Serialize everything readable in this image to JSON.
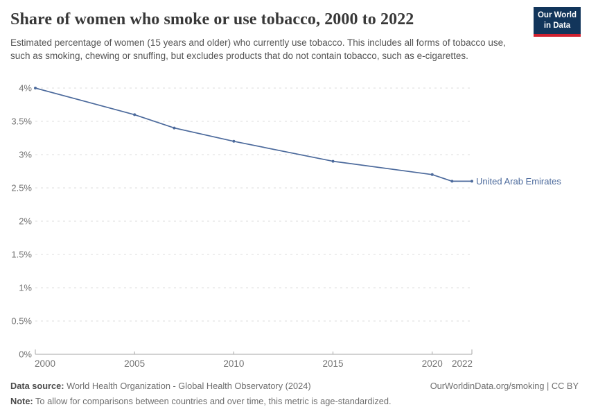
{
  "header": {
    "title": "Share of women who smoke or use tobacco, 2000 to 2022",
    "subtitle": "Estimated percentage of women (15 years and older) who currently use tobacco. This includes all forms of tobacco use, such as smoking, chewing or snuffing, but excludes products that do not contain tobacco, such as e-cigarettes."
  },
  "logo": {
    "line1": "Our World",
    "line2": "in Data",
    "bg_color": "#12355b",
    "stripe_color": "#d0212f"
  },
  "chart_data": {
    "type": "line",
    "title": "Share of women who smoke or use tobacco, 2000 to 2022",
    "series": [
      {
        "name": "United Arab Emirates",
        "color": "#4C6A9C",
        "x": [
          2000,
          2005,
          2007,
          2010,
          2015,
          2020,
          2021,
          2022
        ],
        "values": [
          4.0,
          3.6,
          3.4,
          3.2,
          2.9,
          2.7,
          2.6,
          2.6
        ]
      }
    ],
    "xlim": [
      2000,
      2022
    ],
    "ylim": [
      0,
      4
    ],
    "x_ticks": [
      2000,
      2005,
      2010,
      2015,
      2020,
      2022
    ],
    "y_ticks": [
      0,
      0.5,
      1,
      1.5,
      2,
      2.5,
      3,
      3.5,
      4
    ],
    "y_tick_labels": [
      "0%",
      "0.5%",
      "1%",
      "1.5%",
      "2%",
      "2.5%",
      "3%",
      "3.5%",
      "4%"
    ],
    "xlabel": "",
    "ylabel": "",
    "grid": "horizontal-dashed",
    "legend_position": "end-of-line-label",
    "colors": {
      "grid": "#dedede",
      "axis": "#a6a6a6",
      "tick_text": "#737373"
    }
  },
  "footer": {
    "datasource_label": "Data source:",
    "datasource_value": " World Health Organization - Global Health Observatory (2024)",
    "note_label": "Note:",
    "note_value": " To allow for comparisons between countries and over time, this metric is age-standardized.",
    "link": "OurWorldinData.org/smoking | CC BY"
  }
}
